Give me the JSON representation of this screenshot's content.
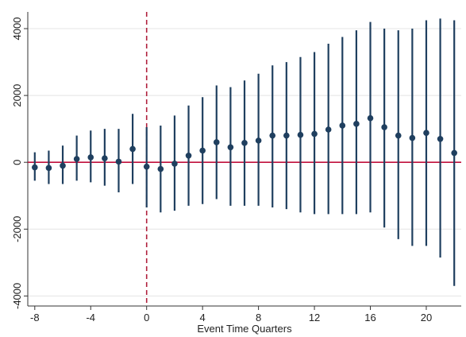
{
  "chart_data": {
    "type": "errorbar",
    "x_label": "Event Time Quarters",
    "x": [
      -8,
      -7,
      -6,
      -5,
      -4,
      -3,
      -2,
      -1,
      0,
      1,
      2,
      3,
      4,
      5,
      6,
      7,
      8,
      9,
      10,
      11,
      12,
      13,
      14,
      15,
      16,
      17,
      18,
      19,
      20,
      21,
      22
    ],
    "series": [
      {
        "color": "#1f3f5f",
        "values": [
          -150,
          -170,
          -100,
          100,
          150,
          120,
          20,
          400,
          -130,
          -200,
          -40,
          200,
          350,
          600,
          450,
          580,
          650,
          800,
          800,
          820,
          850,
          980,
          1100,
          1150,
          1320,
          1050,
          800,
          730,
          880,
          700,
          280
        ],
        "lower": [
          -550,
          -650,
          -650,
          -550,
          -600,
          -700,
          -900,
          -650,
          -1350,
          -1500,
          -1450,
          -1300,
          -1250,
          -1100,
          -1300,
          -1300,
          -1300,
          -1350,
          -1400,
          -1500,
          -1550,
          -1550,
          -1550,
          -1550,
          -1500,
          -1950,
          -2300,
          -2500,
          -2500,
          -2850,
          -3700
        ],
        "upper": [
          300,
          350,
          500,
          800,
          950,
          1000,
          1000,
          1450,
          1050,
          1100,
          1400,
          1700,
          1950,
          2300,
          2250,
          2450,
          2650,
          2900,
          3000,
          3150,
          3300,
          3550,
          3750,
          3950,
          4200,
          4000,
          3950,
          4000,
          4250,
          4300,
          4250
        ]
      }
    ],
    "xlim": [
      -8.5,
      22.5
    ],
    "ylim": [
      -4300,
      4500
    ],
    "xticks": [
      -8,
      -4,
      0,
      4,
      8,
      12,
      16,
      20
    ],
    "yticks": [
      -4000,
      -2000,
      0,
      2000,
      4000
    ],
    "grid": true,
    "vline": 0,
    "vline_color": "#b0203c",
    "hline": 0,
    "hline_color": "#c0103c"
  }
}
